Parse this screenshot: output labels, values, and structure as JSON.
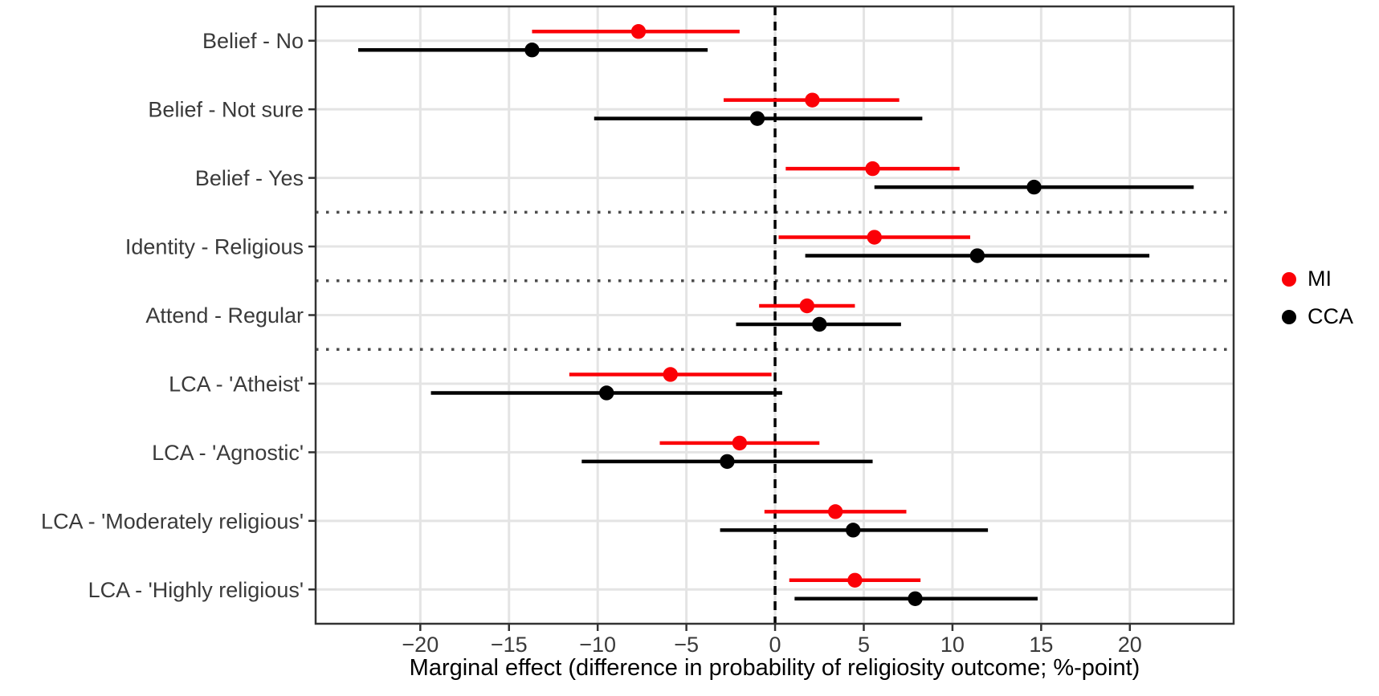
{
  "figure": {
    "background_color": "#ffffff",
    "panel_border_color": "#333333",
    "gridline_color": "#e4e4e4",
    "axis_text_color": "#3a3a3a",
    "separator_color": "#4d4d4d"
  },
  "chart_data": {
    "type": "scatter",
    "subtype": "horizontal-dot-whisker-forest-plot",
    "title": "",
    "xlabel": "Marginal effect (difference in probability of religiosity outcome; %-point)",
    "ylabel": "",
    "xlim": [
      -25.9,
      25.85
    ],
    "x_ticks": [
      -20,
      -15,
      -10,
      -5,
      0,
      5,
      10,
      15,
      20
    ],
    "x_tick_labels": [
      "−20",
      "−15",
      "−10",
      "−5",
      "0",
      "5",
      "10",
      "15",
      "20"
    ],
    "grid": "major only, light gray, on white panel with dark border",
    "legend_position": "right-middle",
    "zero_reference_line": {
      "x": 0,
      "style": "dashed",
      "color": "#000000"
    },
    "separator_rows_after": [
      2,
      3,
      4
    ],
    "separator_style": "dotted",
    "categories": [
      "Belief - No",
      "Belief - Not sure",
      "Belief - Yes",
      "Identity - Religious",
      "Attend - Regular",
      "LCA - 'Atheist'",
      "LCA - 'Agnostic'",
      "LCA - 'Moderately religious'",
      "LCA - 'Highly religious'"
    ],
    "series": [
      {
        "name": "MI",
        "color": "#fb0007",
        "marker": "filled-circle",
        "values": [
          {
            "est": -7.7,
            "lo": -13.7,
            "hi": -2.0
          },
          {
            "est": 2.1,
            "lo": -2.9,
            "hi": 7.0
          },
          {
            "est": 5.5,
            "lo": 0.6,
            "hi": 10.4
          },
          {
            "est": 5.6,
            "lo": 0.2,
            "hi": 11.0
          },
          {
            "est": 1.8,
            "lo": -0.9,
            "hi": 4.5
          },
          {
            "est": -5.9,
            "lo": -11.6,
            "hi": -0.2
          },
          {
            "est": -2.0,
            "lo": -6.5,
            "hi": 2.5
          },
          {
            "est": 3.4,
            "lo": -0.6,
            "hi": 7.4
          },
          {
            "est": 4.5,
            "lo": 0.8,
            "hi": 8.2
          }
        ]
      },
      {
        "name": "CCA",
        "color": "#000000",
        "marker": "filled-circle",
        "values": [
          {
            "est": -13.7,
            "lo": -23.5,
            "hi": -3.8
          },
          {
            "est": -1.0,
            "lo": -10.2,
            "hi": 8.3
          },
          {
            "est": 14.6,
            "lo": 5.6,
            "hi": 23.6
          },
          {
            "est": 11.4,
            "lo": 1.7,
            "hi": 21.1
          },
          {
            "est": 2.5,
            "lo": -2.2,
            "hi": 7.1
          },
          {
            "est": -9.5,
            "lo": -19.4,
            "hi": 0.4
          },
          {
            "est": -2.7,
            "lo": -10.9,
            "hi": 5.5
          },
          {
            "est": 4.4,
            "lo": -3.1,
            "hi": 12.0
          },
          {
            "est": 7.9,
            "lo": 1.1,
            "hi": 14.8
          }
        ]
      }
    ]
  }
}
